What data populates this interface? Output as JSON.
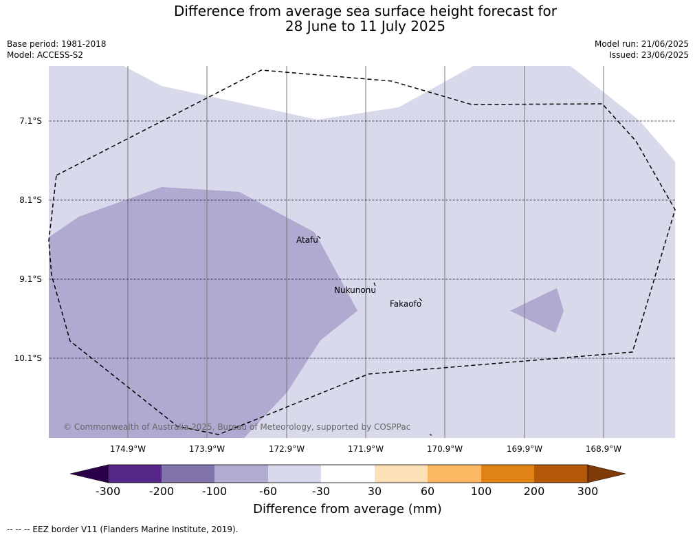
{
  "title_line1": "Difference from average sea surface height forecast for",
  "title_line2": "28 June to 11 July 2025",
  "meta": {
    "base_period": "Base period: 1981-2018",
    "model": "Model: ACCESS-S2",
    "model_run": "Model run: 21/06/2025",
    "issued": "Issued: 23/06/2025"
  },
  "lat_labels": [
    "7.1°S",
    "8.1°S",
    "9.1°S",
    "10.1°S"
  ],
  "lon_labels": [
    "174.9°W",
    "173.9°W",
    "172.9°W",
    "171.9°W",
    "170.9°W",
    "169.9°W",
    "168.9°W"
  ],
  "places": [
    "Atafu",
    "Nukunonu",
    "Fakaofo"
  ],
  "copyright": "© Commonwealth of Australia 2025, Bureau of Meteorology, supported by COSPPac",
  "colorbar": {
    "title": "Difference from average (mm)",
    "labels": [
      "-300",
      "-200",
      "-100",
      "-60",
      "-30",
      "30",
      "60",
      "100",
      "200",
      "300"
    ],
    "colors": [
      "#2d004b",
      "#542788",
      "#8073ac",
      "#b2abd2",
      "#d8daeb",
      "#ffffff",
      "#fee0b6",
      "#fdb863",
      "#e08214",
      "#b35806",
      "#7f3b08"
    ]
  },
  "legend_note": "--  --  -- EEZ border V11 (Flanders Marine Institute, 2019)."
}
